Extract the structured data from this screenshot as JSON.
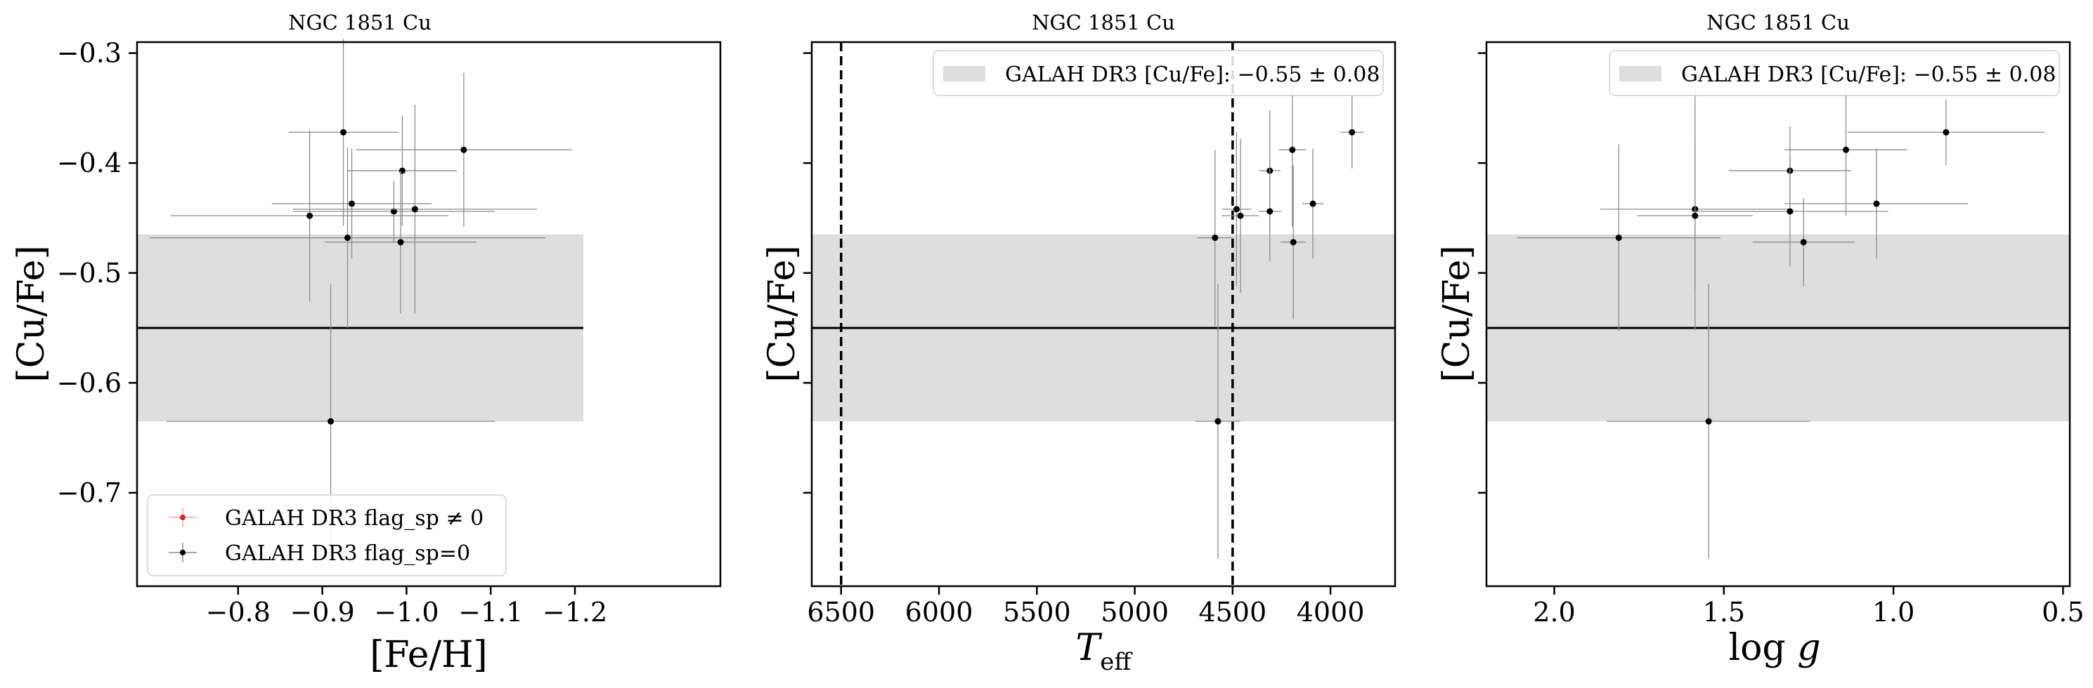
{
  "colors": {
    "band": "#dedede",
    "point": "#000000",
    "errorbar": "#8c8c8c",
    "flagged_point": "#d62728"
  },
  "chart_data": [
    {
      "type": "scatter",
      "title": "NGC 1851 Cu",
      "xlabel": "[Fe/H]",
      "ylabel": "[Cu/Fe]",
      "xlim": [
        -0.68,
        -1.21
      ],
      "ylim": [
        -0.785,
        -0.29
      ],
      "xticks": [
        -0.8,
        -0.9,
        -1.0,
        -1.1,
        -1.2
      ],
      "xtick_labels": [
        "−0.8",
        "−0.9",
        "−1.0",
        "−1.1",
        "−1.2"
      ],
      "yticks": [
        -0.3,
        -0.4,
        -0.5,
        -0.6,
        -0.7
      ],
      "ytick_labels": [
        "−0.3",
        "−0.4",
        "−0.5",
        "−0.6",
        "−0.7"
      ],
      "show_ytick_labels": true,
      "reference_band": {
        "center": -0.55,
        "half_width": 0.085
      },
      "vlines": [],
      "legend": {
        "position": "lower-left",
        "entries": [
          {
            "label": "GALAH DR3 flag_sp ≠ 0",
            "marker_color": "#d62728"
          },
          {
            "label": "GALAH DR3 flag_sp=0",
            "marker_color": "#000000"
          }
        ]
      },
      "points": [
        {
          "x": -0.885,
          "y": -0.448,
          "xerr": 0.165,
          "yerr": 0.078
        },
        {
          "x": -0.925,
          "y": -0.372,
          "xerr": 0.065,
          "yerr": 0.085
        },
        {
          "x": -0.935,
          "y": -0.437,
          "xerr": 0.095,
          "yerr": 0.05
        },
        {
          "x": -0.93,
          "y": -0.468,
          "xerr": 0.235,
          "yerr": 0.082
        },
        {
          "x": -0.91,
          "y": -0.635,
          "xerr": 0.195,
          "yerr": 0.125
        },
        {
          "x": -0.985,
          "y": -0.444,
          "xerr": 0.12,
          "yerr": 0.028
        },
        {
          "x": -0.995,
          "y": -0.407,
          "xerr": 0.065,
          "yerr": 0.05
        },
        {
          "x": -0.993,
          "y": -0.472,
          "xerr": 0.09,
          "yerr": 0.065
        },
        {
          "x": -1.01,
          "y": -0.442,
          "xerr": 0.145,
          "yerr": 0.095
        },
        {
          "x": -1.068,
          "y": -0.388,
          "xerr": 0.128,
          "yerr": 0.07
        }
      ]
    },
    {
      "type": "scatter",
      "title": "NGC 1851 Cu",
      "xlabel": "T_eff",
      "ylabel": "[Cu/Fe]",
      "xlim": [
        6650,
        3670
      ],
      "ylim": [
        -0.785,
        -0.29
      ],
      "xticks": [
        6500,
        6000,
        5500,
        5000,
        4500,
        4000
      ],
      "xtick_labels": [
        "6500",
        "6000",
        "5500",
        "5000",
        "4500",
        "4000"
      ],
      "yticks": [
        -0.3,
        -0.4,
        -0.5,
        -0.6,
        -0.7
      ],
      "ytick_labels": [],
      "show_ytick_labels": false,
      "reference_band": {
        "center": -0.55,
        "half_width": 0.085
      },
      "vlines": [
        6500,
        4500
      ],
      "legend": {
        "position": "top-right",
        "entries": [
          {
            "label": "GALAH DR3 [Cu/Fe]: −0.55 ± 0.08",
            "patch_color": "#dedede"
          }
        ]
      },
      "points": [
        {
          "x": 4590,
          "y": -0.468,
          "xerr": 90,
          "yerr": 0.08
        },
        {
          "x": 4575,
          "y": -0.635,
          "xerr": 115,
          "yerr": 0.125
        },
        {
          "x": 4480,
          "y": -0.442,
          "xerr": 75,
          "yerr": 0.07
        },
        {
          "x": 4460,
          "y": -0.448,
          "xerr": 95,
          "yerr": 0.07
        },
        {
          "x": 4310,
          "y": -0.407,
          "xerr": 55,
          "yerr": 0.055
        },
        {
          "x": 4310,
          "y": -0.444,
          "xerr": 60,
          "yerr": 0.045
        },
        {
          "x": 4195,
          "y": -0.388,
          "xerr": 70,
          "yerr": 0.07
        },
        {
          "x": 4190,
          "y": -0.472,
          "xerr": 65,
          "yerr": 0.07
        },
        {
          "x": 4090,
          "y": -0.437,
          "xerr": 55,
          "yerr": 0.05
        },
        {
          "x": 3890,
          "y": -0.372,
          "xerr": 60,
          "yerr": 0.033
        }
      ]
    },
    {
      "type": "scatter",
      "title": "NGC 1851 Cu",
      "xlabel": "log g",
      "ylabel": "[Cu/Fe]",
      "xlim": [
        2.2,
        0.48
      ],
      "ylim": [
        -0.785,
        -0.29
      ],
      "xticks": [
        2.0,
        1.5,
        1.0,
        0.5
      ],
      "xtick_labels": [
        "2.0",
        "1.5",
        "1.0",
        "0.5"
      ],
      "yticks": [
        -0.3,
        -0.4,
        -0.5,
        -0.6,
        -0.7
      ],
      "ytick_labels": [],
      "show_ytick_labels": false,
      "reference_band": {
        "center": -0.55,
        "half_width": 0.085
      },
      "vlines": [],
      "legend": {
        "position": "top-right",
        "entries": [
          {
            "label": "GALAH DR3 [Cu/Fe]: −0.55 ± 0.08",
            "patch_color": "#dedede"
          }
        ]
      },
      "points": [
        {
          "x": 1.81,
          "y": -0.468,
          "xerr": 0.3,
          "yerr": 0.085
        },
        {
          "x": 1.585,
          "y": -0.442,
          "xerr": 0.28,
          "yerr": 0.11
        },
        {
          "x": 1.585,
          "y": -0.448,
          "xerr": 0.17,
          "yerr": 0.07
        },
        {
          "x": 1.545,
          "y": -0.635,
          "xerr": 0.3,
          "yerr": 0.125
        },
        {
          "x": 1.305,
          "y": -0.407,
          "xerr": 0.18,
          "yerr": 0.04
        },
        {
          "x": 1.305,
          "y": -0.444,
          "xerr": 0.29,
          "yerr": 0.05
        },
        {
          "x": 1.265,
          "y": -0.472,
          "xerr": 0.15,
          "yerr": 0.04
        },
        {
          "x": 1.14,
          "y": -0.388,
          "xerr": 0.18,
          "yerr": 0.06
        },
        {
          "x": 1.05,
          "y": -0.437,
          "xerr": 0.27,
          "yerr": 0.05
        },
        {
          "x": 0.845,
          "y": -0.372,
          "xerr": 0.29,
          "yerr": 0.03
        }
      ]
    }
  ]
}
